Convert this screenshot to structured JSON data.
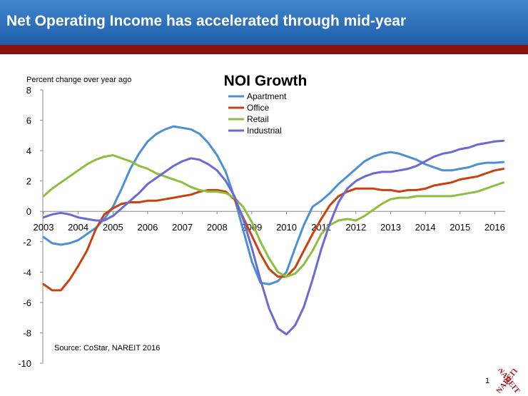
{
  "slide": {
    "title": "Net Operating Income has accelerated through mid-year",
    "page_number": "1",
    "logo_text": "NAREIT",
    "colors": {
      "banner": "#2f74bf",
      "accent_bar": "#8b1111"
    }
  },
  "chart_data": {
    "type": "line",
    "title": "NOI Growth",
    "ylabel": "Percent change over year ago",
    "source": "Source: CoStar, NAREIT 2016",
    "xlim": [
      2003,
      2016.3
    ],
    "ylim": [
      -10,
      8
    ],
    "yticks": [
      -10,
      -8,
      -6,
      -4,
      -2,
      0,
      2,
      4,
      6,
      8
    ],
    "xticks": [
      "2003",
      "2004",
      "2005",
      "2006",
      "2007",
      "2008",
      "2009",
      "2010",
      "2011",
      "2012",
      "2013",
      "2014",
      "2015",
      "2016"
    ],
    "grid": false,
    "legend_position": "top-center",
    "x": [
      2003,
      2003.25,
      2003.5,
      2003.75,
      2004,
      2004.25,
      2004.5,
      2004.75,
      2005,
      2005.25,
      2005.5,
      2005.75,
      2006,
      2006.25,
      2006.5,
      2006.75,
      2007,
      2007.25,
      2007.5,
      2007.75,
      2008,
      2008.25,
      2008.5,
      2008.75,
      2009,
      2009.25,
      2009.5,
      2009.75,
      2010,
      2010.25,
      2010.5,
      2010.75,
      2011,
      2011.25,
      2011.5,
      2011.75,
      2012,
      2012.25,
      2012.5,
      2012.75,
      2013,
      2013.25,
      2013.5,
      2013.75,
      2014,
      2014.25,
      2014.5,
      2014.75,
      2015,
      2015.25,
      2015.5,
      2015.75,
      2016,
      2016.25
    ],
    "series": [
      {
        "name": "Apartment",
        "color": "#4a90d4",
        "values": [
          -1.7,
          -2.1,
          -2.2,
          -2.1,
          -1.9,
          -1.5,
          -1.1,
          -0.5,
          0.3,
          1.5,
          2.8,
          3.8,
          4.6,
          5.1,
          5.4,
          5.6,
          5.5,
          5.4,
          5.1,
          4.5,
          3.7,
          2.6,
          0.9,
          -1.2,
          -3.3,
          -4.7,
          -4.8,
          -4.6,
          -4.0,
          -2.4,
          -0.9,
          0.3,
          0.7,
          1.2,
          1.8,
          2.3,
          2.8,
          3.3,
          3.6,
          3.8,
          3.9,
          3.8,
          3.6,
          3.4,
          3.1,
          2.9,
          2.7,
          2.7,
          2.8,
          2.9,
          3.1,
          3.2,
          3.2,
          3.25
        ]
      },
      {
        "name": "Office",
        "color": "#c9420e",
        "values": [
          -4.8,
          -5.2,
          -5.2,
          -4.5,
          -3.6,
          -2.6,
          -1.2,
          -0.2,
          0.2,
          0.5,
          0.6,
          0.6,
          0.7,
          0.7,
          0.8,
          0.9,
          1.0,
          1.1,
          1.3,
          1.4,
          1.4,
          1.3,
          0.8,
          -0.4,
          -1.6,
          -2.8,
          -3.8,
          -4.3,
          -4.3,
          -3.7,
          -2.6,
          -1.5,
          -0.5,
          0.4,
          1.0,
          1.3,
          1.5,
          1.5,
          1.5,
          1.4,
          1.4,
          1.3,
          1.4,
          1.4,
          1.5,
          1.7,
          1.8,
          1.9,
          2.1,
          2.2,
          2.3,
          2.5,
          2.7,
          2.8
        ]
      },
      {
        "name": "Retail",
        "color": "#8cbf3f",
        "values": [
          1.0,
          1.5,
          1.9,
          2.3,
          2.7,
          3.1,
          3.4,
          3.6,
          3.7,
          3.5,
          3.3,
          3.0,
          2.8,
          2.5,
          2.3,
          2.1,
          1.9,
          1.6,
          1.4,
          1.3,
          1.3,
          1.2,
          0.9,
          0.3,
          -0.7,
          -2.0,
          -3.1,
          -4.0,
          -4.3,
          -4.1,
          -3.5,
          -2.6,
          -1.5,
          -0.9,
          -0.6,
          -0.5,
          -0.6,
          -0.3,
          0.1,
          0.5,
          0.8,
          0.9,
          0.9,
          1.0,
          1.0,
          1.0,
          1.0,
          1.0,
          1.1,
          1.2,
          1.3,
          1.5,
          1.7,
          1.9
        ]
      },
      {
        "name": "Industrial",
        "color": "#6a6ad6",
        "values": [
          -0.4,
          -0.2,
          -0.1,
          -0.2,
          -0.4,
          -0.5,
          -0.6,
          -0.6,
          -0.3,
          0.2,
          0.7,
          1.2,
          1.8,
          2.2,
          2.6,
          3.0,
          3.3,
          3.5,
          3.4,
          3.1,
          2.7,
          2.0,
          1.0,
          -0.5,
          -2.4,
          -4.5,
          -6.4,
          -7.7,
          -8.1,
          -7.5,
          -6.3,
          -4.5,
          -2.5,
          -0.8,
          0.6,
          1.5,
          2.0,
          2.3,
          2.5,
          2.6,
          2.6,
          2.7,
          2.8,
          3.0,
          3.3,
          3.6,
          3.8,
          3.9,
          4.1,
          4.2,
          4.4,
          4.5,
          4.6,
          4.65
        ]
      }
    ]
  }
}
